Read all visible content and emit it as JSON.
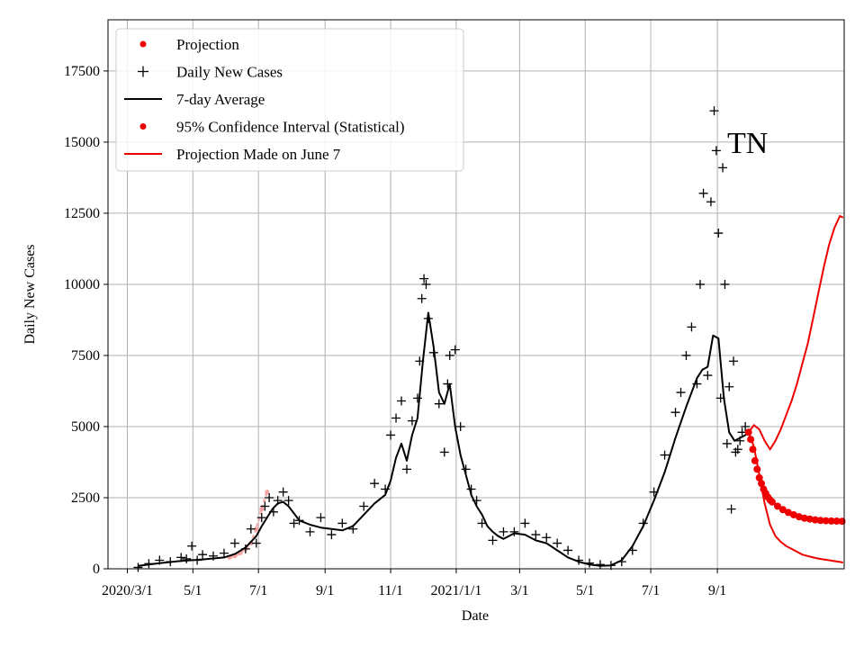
{
  "chart_data": {
    "type": "scatter",
    "annotation": "TN",
    "xlabel": "Date",
    "ylabel": "Daily New Cases",
    "x_tick_labels": [
      "2020/3/1",
      "5/1",
      "7/1",
      "9/1",
      "11/1",
      "2021/1/1",
      "3/1",
      "5/1",
      "7/1",
      "9/1"
    ],
    "x_tick_days": [
      0,
      61,
      122,
      184,
      245,
      306,
      365,
      426,
      487,
      549
    ],
    "xlim_days": [
      -18,
      667
    ],
    "ylim": [
      0,
      19300
    ],
    "y_ticks": [
      0,
      2500,
      5000,
      7500,
      10000,
      12500,
      15000,
      17500
    ],
    "y_tick_labels": [
      "0",
      "2500",
      "5000",
      "7500",
      "10000",
      "12500",
      "15000",
      "17500"
    ],
    "grid": true,
    "legend_position": "upper-left",
    "legend": [
      {
        "label": "Projection",
        "kind": "red-dot"
      },
      {
        "label": "Daily New Cases",
        "kind": "black-plus"
      },
      {
        "label": "7-day Average",
        "kind": "black-line"
      },
      {
        "label": "95% Confidence Interval (Statistical)",
        "kind": "red-dot"
      },
      {
        "label": "Projection Made on June 7",
        "kind": "red-line"
      }
    ],
    "seven_day_average": {
      "x": [
        10,
        30,
        50,
        70,
        90,
        100,
        110,
        120,
        125,
        130,
        135,
        140,
        145,
        150,
        155,
        160,
        170,
        180,
        190,
        200,
        210,
        220,
        230,
        240,
        245,
        250,
        255,
        260,
        265,
        270,
        275,
        280,
        285,
        290,
        295,
        300,
        305,
        310,
        315,
        320,
        325,
        330,
        335,
        340,
        345,
        350,
        360,
        370,
        380,
        390,
        400,
        410,
        420,
        430,
        440,
        450,
        460,
        470,
        480,
        490,
        500,
        510,
        520,
        530,
        535,
        540,
        545,
        550,
        555,
        560,
        565,
        570,
        575,
        578
      ],
      "y": [
        100,
        200,
        280,
        330,
        400,
        520,
        750,
        1150,
        1500,
        1800,
        2100,
        2300,
        2350,
        2200,
        1950,
        1700,
        1550,
        1450,
        1400,
        1350,
        1500,
        1900,
        2300,
        2600,
        3100,
        3900,
        4400,
        3800,
        4700,
        5300,
        7300,
        9000,
        7800,
        6200,
        5800,
        6500,
        5000,
        4000,
        3300,
        2600,
        2200,
        1900,
        1500,
        1300,
        1150,
        1050,
        1250,
        1200,
        1000,
        900,
        650,
        400,
        250,
        150,
        100,
        120,
        300,
        800,
        1500,
        2400,
        3400,
        4600,
        5700,
        6700,
        7000,
        7100,
        8200,
        8100,
        6000,
        4800,
        4500,
        4600,
        4700,
        4800
      ]
    },
    "daily_new_cases": {
      "x": [
        10,
        20,
        30,
        40,
        50,
        55,
        60,
        65,
        70,
        80,
        90,
        100,
        110,
        115,
        120,
        125,
        128,
        132,
        136,
        140,
        145,
        150,
        155,
        160,
        170,
        180,
        190,
        200,
        210,
        220,
        230,
        240,
        245,
        250,
        255,
        260,
        265,
        270,
        272,
        274,
        276,
        278,
        280,
        285,
        290,
        295,
        298,
        300,
        305,
        310,
        315,
        320,
        325,
        330,
        340,
        350,
        360,
        370,
        380,
        390,
        400,
        410,
        420,
        430,
        440,
        450,
        460,
        470,
        480,
        490,
        500,
        510,
        515,
        520,
        525,
        530,
        533,
        536,
        540,
        543,
        546,
        548,
        550,
        552,
        554,
        556,
        558,
        560,
        562,
        564,
        566,
        568,
        570,
        572,
        575
      ],
      "y": [
        50,
        180,
        300,
        250,
        400,
        350,
        800,
        300,
        500,
        450,
        550,
        900,
        700,
        1400,
        900,
        1800,
        2200,
        2500,
        2000,
        2400,
        2700,
        2400,
        1600,
        1700,
        1300,
        1800,
        1200,
        1600,
        1400,
        2200,
        3000,
        2800,
        4700,
        5300,
        5900,
        3500,
        5200,
        6000,
        7300,
        9500,
        10200,
        10000,
        8800,
        7600,
        5800,
        4100,
        6500,
        7500,
        7700,
        5000,
        3500,
        2800,
        2400,
        1600,
        1000,
        1300,
        1300,
        1600,
        1200,
        1100,
        900,
        650,
        300,
        200,
        150,
        120,
        250,
        650,
        1600,
        2700,
        4000,
        5500,
        6200,
        7500,
        8500,
        6500,
        10000,
        13200,
        6800,
        12900,
        16100,
        14700,
        11800,
        6000,
        14100,
        10000,
        4400,
        6400,
        2100,
        7300,
        4100,
        4200,
        4500,
        4800,
        5000
      ]
    },
    "projection": {
      "x": [
        578,
        580,
        582,
        584,
        586,
        588,
        590,
        592,
        594,
        596,
        598,
        600,
        605,
        610,
        615,
        620,
        625,
        630,
        635,
        640,
        645,
        650,
        655,
        660,
        665
      ],
      "y": [
        4800,
        4550,
        4200,
        3800,
        3500,
        3200,
        3000,
        2800,
        2650,
        2520,
        2420,
        2350,
        2200,
        2080,
        1980,
        1900,
        1830,
        1780,
        1750,
        1720,
        1700,
        1690,
        1680,
        1675,
        1670
      ]
    },
    "confidence_interval_early": {
      "x": [
        95,
        100,
        105,
        110,
        115,
        120,
        125,
        130
      ],
      "y": [
        400,
        450,
        550,
        700,
        900,
        1400,
        2100,
        2700
      ]
    },
    "projection_made_june7": {
      "upper_x": [
        578,
        583,
        588,
        593,
        598,
        603,
        608,
        613,
        618,
        623,
        628,
        633,
        638,
        643,
        648,
        653,
        658,
        663,
        666
      ],
      "upper_y": [
        4800,
        5050,
        4900,
        4500,
        4200,
        4500,
        4900,
        5400,
        5900,
        6500,
        7200,
        7900,
        8800,
        9700,
        10600,
        11400,
        12000,
        12400,
        12350
      ],
      "lower_x": [
        578,
        583,
        588,
        593,
        598,
        603,
        608,
        613,
        618,
        623,
        628,
        633,
        638,
        643,
        648,
        653,
        658,
        663,
        666
      ],
      "lower_y": [
        4800,
        4300,
        3300,
        2300,
        1550,
        1150,
        950,
        800,
        700,
        600,
        500,
        450,
        400,
        360,
        330,
        300,
        270,
        240,
        220
      ]
    }
  }
}
